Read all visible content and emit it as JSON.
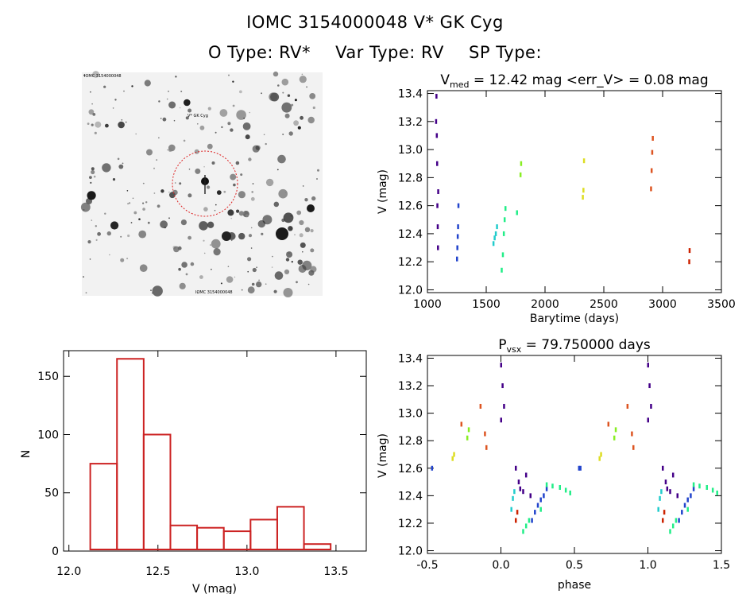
{
  "header": {
    "title_line1": "IOMC 3154000048    V* GK Cyg",
    "otype": "O Type: RV*",
    "vartype": "Var Type: RV",
    "sptype": "SP Type:"
  },
  "finder": {
    "label_top": "IOMC 3154000048",
    "label_bottom": "IOMC 3154000048",
    "marker": "V* GK Cyg"
  },
  "chart_data": [
    {
      "type": "scatter",
      "id": "lightcurve",
      "title": "V_med = 12.42 mag <err_V> = 0.08 mag",
      "title_parts": {
        "v": "V",
        "sub": "med",
        "rest": " = 12.42 mag <err_V> = 0.08 mag"
      },
      "xlabel": "Barytime (days)",
      "ylabel": "V (mag)",
      "xlim": [
        1000,
        3500
      ],
      "ylim": [
        13.42,
        11.98
      ],
      "yinverted": true,
      "xticks": [
        1000,
        1500,
        2000,
        2500,
        3000,
        3500
      ],
      "yticks": [
        12.0,
        12.2,
        12.4,
        12.6,
        12.8,
        13.0,
        13.2,
        13.4
      ],
      "series": [
        {
          "color": "#440088",
          "x": [
            1075,
            1078,
            1081,
            1083,
            1086,
            1088,
            1072,
            1090
          ],
          "y": [
            13.38,
            13.1,
            12.9,
            12.6,
            12.45,
            12.3,
            13.2,
            12.7
          ]
        },
        {
          "color": "#2244cc",
          "x": [
            1250,
            1253,
            1256,
            1259,
            1262
          ],
          "y": [
            12.22,
            12.3,
            12.38,
            12.45,
            12.6
          ]
        },
        {
          "color": "#22cccc",
          "x": [
            1560,
            1570,
            1580,
            1590
          ],
          "y": [
            12.33,
            12.37,
            12.4,
            12.45
          ]
        },
        {
          "color": "#22ee88",
          "x": [
            1630,
            1640,
            1648,
            1655,
            1662,
            1760
          ],
          "y": [
            12.14,
            12.25,
            12.4,
            12.5,
            12.58,
            12.55
          ]
        },
        {
          "color": "#88ee22",
          "x": [
            1790,
            1795
          ],
          "y": [
            12.82,
            12.9
          ]
        },
        {
          "color": "#dddd22",
          "x": [
            2320,
            2325,
            2330
          ],
          "y": [
            12.66,
            12.71,
            12.92
          ]
        },
        {
          "color": "#dd5522",
          "x": [
            2900,
            2905,
            2910,
            2915
          ],
          "y": [
            12.72,
            12.85,
            12.98,
            13.08
          ]
        },
        {
          "color": "#cc2200",
          "x": [
            3225,
            3228
          ],
          "y": [
            12.2,
            12.28
          ]
        }
      ]
    },
    {
      "type": "bar",
      "id": "histogram",
      "title": "",
      "xlabel": "V (mag)",
      "ylabel": "N",
      "xlim": [
        11.97,
        13.67
      ],
      "ylim": [
        0,
        172
      ],
      "xticks": [
        12.0,
        12.5,
        13.0,
        13.5
      ],
      "yticks": [
        0,
        50,
        100,
        150
      ],
      "bin_edges": [
        12.12,
        12.27,
        12.42,
        12.57,
        12.72,
        12.87,
        13.02,
        13.17,
        13.32,
        13.47
      ],
      "values": [
        75,
        165,
        100,
        22,
        20,
        17,
        27,
        38,
        6
      ],
      "color": "#cc2222"
    },
    {
      "type": "scatter",
      "id": "phased",
      "title": "P_vsx = 79.750000 days",
      "title_parts": {
        "p": "P",
        "sub": "vsx",
        "rest": " = 79.750000 days"
      },
      "xlabel": "phase",
      "ylabel": "V (mag)",
      "xlim": [
        -0.5,
        1.5
      ],
      "ylim": [
        13.42,
        11.98
      ],
      "yinverted": true,
      "xticks": [
        -0.5,
        0.0,
        0.5,
        1.0,
        1.5
      ],
      "yticks": [
        12.0,
        12.2,
        12.4,
        12.6,
        12.8,
        13.0,
        13.2,
        13.4
      ],
      "series": [
        {
          "color": "#440088",
          "x": [
            0.0,
            0.01,
            0.02,
            0.0,
            0.1,
            0.12,
            0.13,
            0.15,
            0.17,
            0.2
          ],
          "y": [
            13.35,
            13.2,
            13.05,
            12.95,
            12.6,
            12.5,
            12.45,
            12.43,
            12.55,
            12.4
          ]
        },
        {
          "color": "#2244cc",
          "x": [
            0.21,
            0.23,
            0.25,
            0.27,
            0.29,
            0.31
          ],
          "y": [
            12.22,
            12.28,
            12.33,
            12.37,
            12.4,
            12.45
          ]
        },
        {
          "color": "#22cccc",
          "x": [
            0.07,
            0.08,
            0.09
          ],
          "y": [
            12.3,
            12.38,
            12.43
          ]
        },
        {
          "color": "#22ee88",
          "x": [
            0.15,
            0.17,
            0.19,
            0.27,
            0.31,
            0.35,
            0.4,
            0.44,
            0.47
          ],
          "y": [
            12.14,
            12.18,
            12.22,
            12.3,
            12.48,
            12.47,
            12.46,
            12.44,
            12.42
          ]
        },
        {
          "color": "#88ee22",
          "x": [
            -0.23,
            -0.22
          ],
          "y": [
            12.82,
            12.88
          ]
        },
        {
          "color": "#dddd22",
          "x": [
            -0.33,
            -0.32
          ],
          "y": [
            12.67,
            12.7
          ]
        },
        {
          "color": "#dd5522",
          "x": [
            -0.27,
            -0.14,
            -0.11,
            -0.1
          ],
          "y": [
            12.92,
            13.05,
            12.85,
            12.75
          ]
        },
        {
          "color": "#cc2200",
          "x": [
            0.1,
            0.11
          ],
          "y": [
            12.22,
            12.28
          ]
        },
        {
          "color": "#2244cc",
          "x": [
            -0.47,
            0.54
          ],
          "y": [
            12.6,
            12.6
          ]
        }
      ],
      "mirror_offset": 1.0
    }
  ]
}
